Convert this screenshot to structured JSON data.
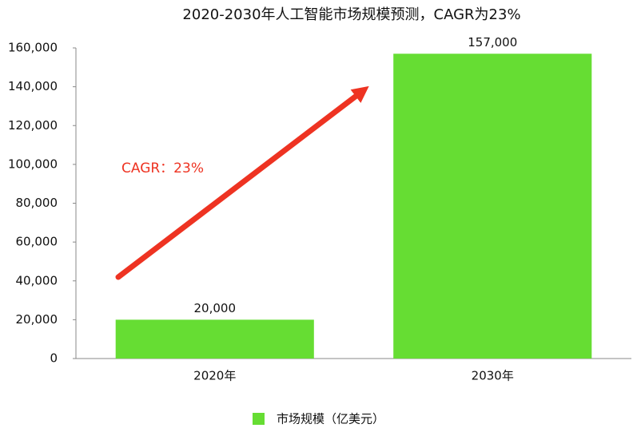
{
  "chart_data": {
    "type": "bar",
    "title": "2020-2030年人工智能市场规模预测，CAGR为23%",
    "categories": [
      "2020年",
      "2030年"
    ],
    "series": [
      {
        "name": "市场规模（亿美元）",
        "color": "#66dd33",
        "values": [
          20000,
          157000
        ],
        "value_labels": [
          "20,000",
          "157,000"
        ]
      }
    ],
    "ylim": [
      0,
      160000
    ],
    "yticks": [
      0,
      {
        "value": 20000,
        "label": "20,000"
      },
      {
        "value": 40000,
        "label": "40,000"
      },
      {
        "value": 60000,
        "label": "60,000"
      },
      {
        "value": 80000,
        "label": "80,000"
      },
      {
        "value": 100000,
        "label": "100,000"
      },
      {
        "value": 120000,
        "label": "120,000"
      },
      {
        "value": 140000,
        "label": "140,000"
      },
      {
        "value": 160000,
        "label": "160,000"
      }
    ],
    "annotation": "CAGR：23%",
    "annotation_color": "#ee3322",
    "legend": "bottom",
    "grid": false
  }
}
